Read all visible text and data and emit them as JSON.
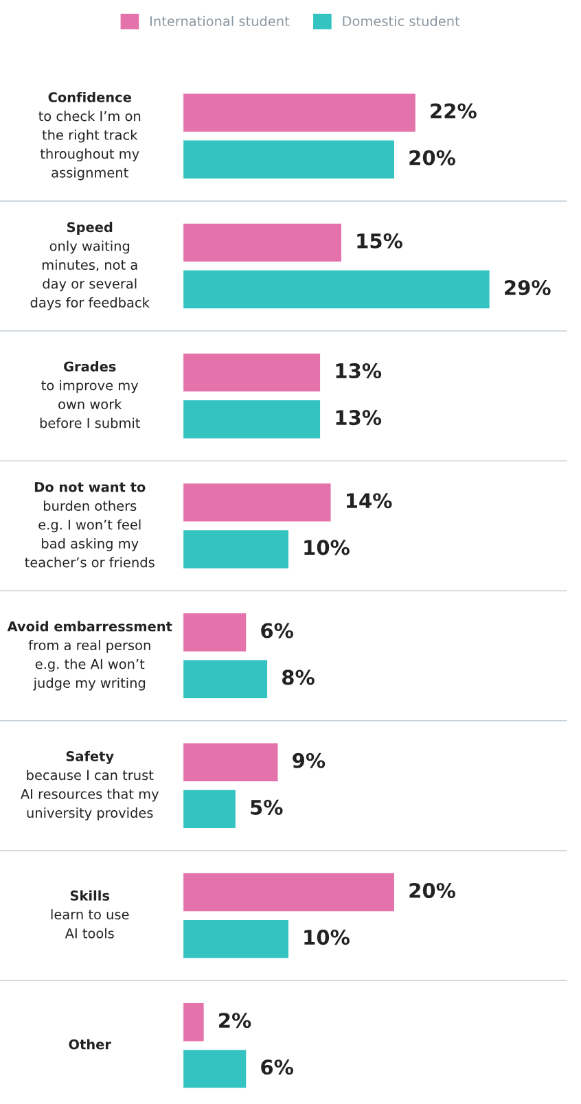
{
  "chart_data": {
    "type": "bar",
    "orientation": "horizontal",
    "categories": [
      "Confidence\nto check I’m on\nthe right track\nthroughout my\nassignment",
      "Speed\nonly waiting\nminutes, not a\nday or several\ndays for feedback",
      "Grades\nto improve my\nown work\nbefore I submit",
      "Do not want to\nburden others\ne.g. I won’t feel\nbad asking my\nteacher’s or friends",
      "Avoid embarressment\nfrom a real person\ne.g. the AI won’t\njudge my writing",
      "Safety\nbecause I can trust\nAI resources that my\nuniversity provides",
      "Skills\nlearn to use\nAI tools",
      "Other"
    ],
    "series": [
      {
        "name": "International student",
        "color": "#e473ab",
        "values": [
          22,
          15,
          13,
          14,
          6,
          9,
          20,
          2
        ],
        "value_labels": [
          "22%",
          "15%",
          "13%",
          "14%",
          "6%",
          "9%",
          "20%",
          "2%"
        ]
      },
      {
        "name": "Domestic student",
        "color": "#33c4c1",
        "values": [
          20,
          29,
          13,
          10,
          8,
          5,
          10,
          6
        ],
        "value_labels": [
          "20%",
          "29%",
          "13%",
          "10%",
          "8%",
          "5%",
          "10%",
          "6%"
        ]
      }
    ],
    "legend": "top"
  }
}
